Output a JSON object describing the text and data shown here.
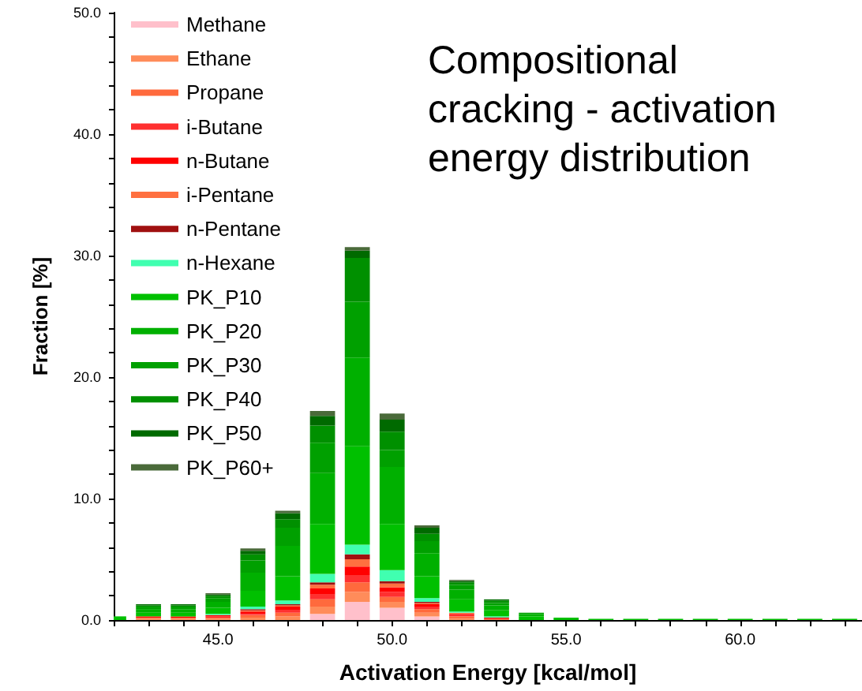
{
  "chart_data": {
    "type": "bar",
    "title": "Compositional cracking - activation energy distribution",
    "xlabel": "Activation Energy [kcal/mol]",
    "ylabel": "Fraction [%]",
    "stacked": true,
    "legend": "top left",
    "grid": false,
    "x": [
      42,
      43,
      44,
      45,
      46,
      47,
      48,
      49,
      50,
      51,
      52,
      53,
      54,
      55,
      56,
      57,
      58,
      59,
      60,
      61,
      62,
      63
    ],
    "xlim": [
      42,
      63.5
    ],
    "xticks": [
      {
        "value": 45,
        "label": "45.0"
      },
      {
        "value": 50,
        "label": "50.0"
      },
      {
        "value": 55,
        "label": "55.0"
      },
      {
        "value": 60,
        "label": "60.0"
      }
    ],
    "ylim": [
      0,
      50
    ],
    "yticks": [
      {
        "value": 0,
        "label": "0.0"
      },
      {
        "value": 10,
        "label": "10.0"
      },
      {
        "value": 20,
        "label": "20.0"
      },
      {
        "value": 30,
        "label": "30.0"
      },
      {
        "value": 40,
        "label": "40.0"
      },
      {
        "value": 50,
        "label": "50.0"
      }
    ],
    "series": [
      {
        "name": "Methane",
        "color": "#ffc0cb",
        "values": [
          0,
          0,
          0,
          0,
          null,
          null,
          0.5,
          1.5,
          1.0,
          0.3,
          null,
          0,
          0,
          0,
          0,
          0,
          0,
          0,
          0,
          0,
          0,
          0
        ]
      },
      {
        "name": "Ethane",
        "color": "#ff8c5a",
        "values": [
          0,
          0.1,
          0.1,
          0.1,
          0.2,
          0.3,
          0.6,
          0.8,
          0.5,
          0.3,
          0.1,
          0,
          0,
          0,
          0,
          0,
          0,
          0,
          0,
          0,
          0,
          0
        ]
      },
      {
        "name": "Propane",
        "color": "#ff6a3d",
        "values": [
          0,
          0.1,
          0.1,
          0.1,
          0.2,
          0.3,
          0.6,
          0.8,
          0.4,
          0.3,
          0.2,
          0.1,
          0,
          0,
          0,
          0,
          0,
          0,
          0,
          0,
          0,
          0
        ]
      },
      {
        "name": "i-Butane",
        "color": "#ff3030",
        "values": [
          0,
          0,
          0,
          0.1,
          0.1,
          0.2,
          0.4,
          0.6,
          0.4,
          0.2,
          0.1,
          0,
          0,
          0,
          0,
          0,
          0,
          0,
          0,
          0,
          0,
          0
        ]
      },
      {
        "name": "n-Butane",
        "color": "#ff0000",
        "values": [
          0,
          0.1,
          0.1,
          0.1,
          0.2,
          0.3,
          0.5,
          0.7,
          0.4,
          0.2,
          0.1,
          0.1,
          0,
          0,
          0,
          0,
          0,
          0,
          0,
          0,
          0,
          0
        ]
      },
      {
        "name": "i-Pentane",
        "color": "#ff7040",
        "values": [
          0,
          0,
          0,
          0,
          0.1,
          0.1,
          0.3,
          0.6,
          0.3,
          0.1,
          0.1,
          0,
          0,
          0,
          0,
          0,
          0,
          0,
          0,
          0,
          0,
          0
        ]
      },
      {
        "name": "n-Pentane",
        "color": "#a01010",
        "values": [
          0,
          0,
          0,
          0,
          0.1,
          0.1,
          0.2,
          0.4,
          0.2,
          0.1,
          0,
          0,
          0,
          0,
          0,
          0,
          0,
          0,
          0,
          0,
          0,
          0
        ]
      },
      {
        "name": "n-Hexane",
        "color": "#40ffb0",
        "values": [
          0,
          0,
          0,
          0.1,
          0.2,
          0.3,
          0.7,
          0.8,
          0.9,
          0.3,
          0.1,
          0.1,
          0,
          0,
          0,
          0,
          0,
          0,
          0,
          0,
          0,
          0
        ]
      },
      {
        "name": "PK_P10",
        "color": "#00c000",
        "values": [
          0.3,
          0.3,
          0.3,
          0.5,
          1.3,
          2.0,
          4.1,
          8.1,
          3.8,
          1.8,
          1.0,
          0.5,
          0.3,
          0.2,
          0.1,
          0.1,
          0.1,
          0.1,
          0.1,
          0.1,
          0.1,
          0.1
        ]
      },
      {
        "name": "PK_P20",
        "color": "#00b000",
        "values": [
          0,
          0.3,
          0.3,
          0.5,
          1.5,
          2.5,
          4.2,
          7.3,
          4.7,
          1.9,
          0.8,
          0.4,
          0.2,
          0,
          0,
          0,
          0,
          0,
          0,
          0,
          0,
          0
        ]
      },
      {
        "name": "PK_P30",
        "color": "#00a000",
        "values": [
          0,
          0.2,
          0.2,
          0.3,
          1.0,
          1.5,
          2.5,
          4.6,
          1.4,
          1.0,
          0.4,
          0.2,
          0.1,
          0,
          0,
          0,
          0,
          0,
          0,
          0,
          0,
          0
        ]
      },
      {
        "name": "PK_P40",
        "color": "#009000",
        "values": [
          0,
          0.1,
          0.1,
          0.2,
          0.5,
          0.7,
          1.4,
          3.6,
          1.5,
          0.6,
          0.2,
          0.2,
          0,
          0,
          0,
          0,
          0,
          0,
          0,
          0,
          0,
          0
        ]
      },
      {
        "name": "PK_P50",
        "color": "#006a00",
        "values": [
          0,
          0.1,
          0.1,
          0.1,
          0.3,
          0.5,
          0.8,
          0.6,
          1.0,
          0.5,
          0.1,
          0.1,
          0,
          0,
          0,
          0,
          0,
          0,
          0,
          0,
          0,
          0
        ]
      },
      {
        "name": "PK_P60+",
        "color": "#4a6a3a",
        "values": [
          0,
          0,
          0,
          0.1,
          0.2,
          0.2,
          0.4,
          0.3,
          0.5,
          0.2,
          0.1,
          0,
          0,
          0,
          0,
          0,
          0,
          0,
          0,
          0,
          0,
          0
        ]
      }
    ]
  }
}
